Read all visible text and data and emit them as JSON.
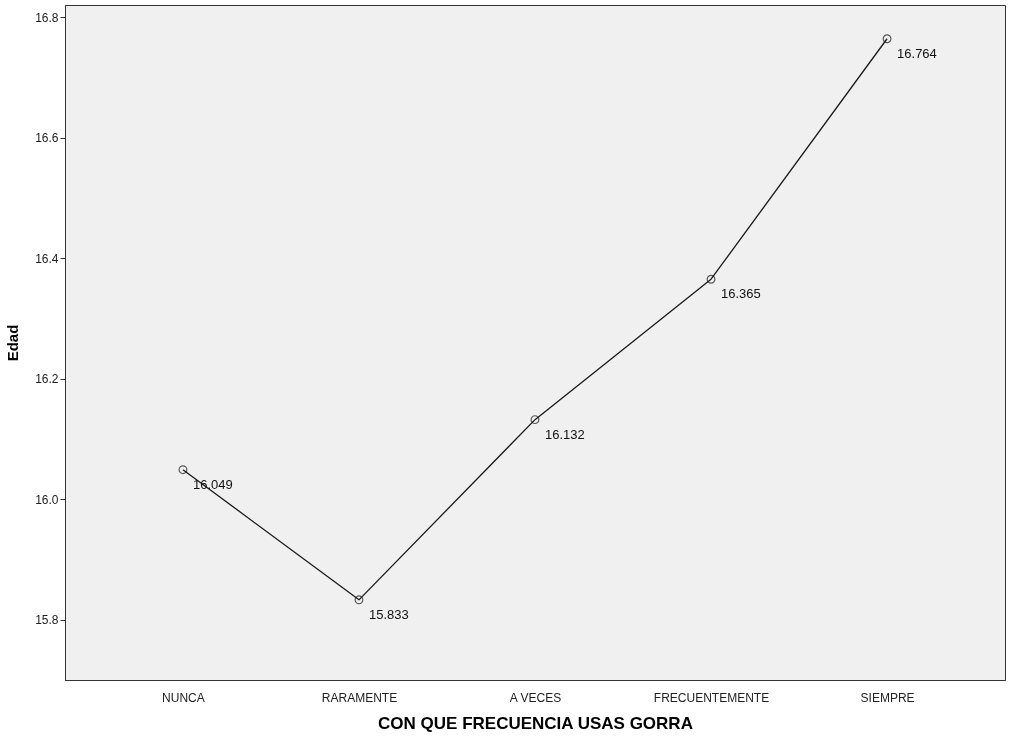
{
  "chart_data": {
    "type": "line",
    "xlabel": "CON QUE FRECUENCIA USAS GORRA",
    "ylabel": "Edad",
    "categories": [
      "NUNCA",
      "RARAMENTE",
      "A VECES",
      "FRECUENTEMENTE",
      "SIEMPRE"
    ],
    "series": [
      {
        "color": "#1a1a1a",
        "values": [
          16.049,
          15.833,
          16.132,
          16.365,
          16.764
        ]
      }
    ],
    "ylim": [
      15.7,
      16.82
    ],
    "yticks": [
      15.8,
      {
        "value": 16,
        "label": "16.0"
      },
      16.2,
      16.4,
      16.6,
      16.8
    ],
    "data_labels": true,
    "grid": false,
    "marker": "circle",
    "line_style": "solid"
  }
}
